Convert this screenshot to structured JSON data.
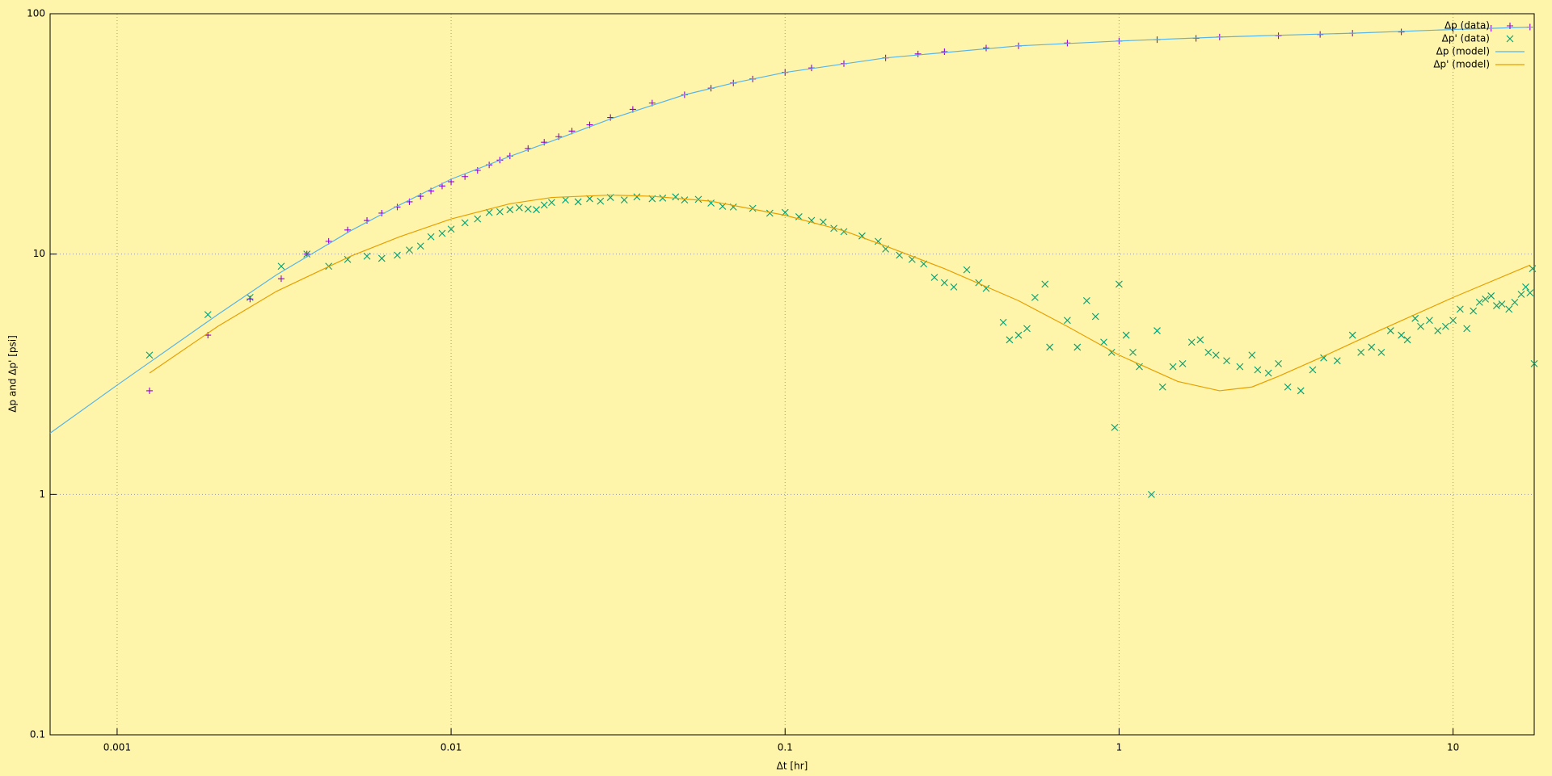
{
  "chart_data": {
    "type": "scatter",
    "xlabel": "Δt [hr]",
    "ylabel": "Δp  and  Δp' [psi]",
    "xlog": true,
    "ylog": true,
    "grid": true,
    "legend": "top-right",
    "background": "#fff5aa",
    "xlim": [
      0.00063,
      17.5
    ],
    "ylim": [
      0.1,
      100
    ],
    "xticks": [
      0.001,
      0.01,
      0.1,
      1,
      10
    ],
    "yticks": [
      0.1,
      1,
      10,
      100
    ],
    "series": [
      {
        "name": "Δp (data)",
        "style": "plus",
        "color": "#9400d3",
        "x": [
          0.00125,
          0.00187,
          0.0025,
          0.0031,
          0.0037,
          0.0043,
          0.0049,
          0.0056,
          0.0062,
          0.0069,
          0.0075,
          0.0081,
          0.0087,
          0.0094,
          0.01,
          0.011,
          0.012,
          0.013,
          0.014,
          0.015,
          0.017,
          0.019,
          0.021,
          0.023,
          0.026,
          0.03,
          0.035,
          0.04,
          0.05,
          0.06,
          0.07,
          0.08,
          0.1,
          0.12,
          0.15,
          0.2,
          0.25,
          0.3,
          0.4,
          0.5,
          0.7,
          1,
          1.3,
          1.7,
          2,
          3,
          4,
          5,
          7,
          10,
          13,
          17
        ],
        "values": [
          2.7,
          4.6,
          6.5,
          7.9,
          10,
          11.3,
          12.6,
          13.8,
          14.8,
          15.7,
          16.5,
          17.4,
          18.3,
          19.2,
          20,
          21,
          22.3,
          23.5,
          24.6,
          25.6,
          27.5,
          29.2,
          30.8,
          32.5,
          34.5,
          37,
          40,
          42.5,
          46,
          49,
          51.5,
          53.5,
          57,
          59.5,
          62,
          65.5,
          68,
          69.5,
          72,
          73.5,
          75.5,
          77,
          78,
          79,
          80,
          81,
          82,
          83,
          84,
          86,
          87,
          88
        ]
      },
      {
        "name": "Δp' (data)",
        "style": "cross",
        "color": "#009e73",
        "x": [
          0.00125,
          0.00187,
          0.0025,
          0.0031,
          0.0037,
          0.0043,
          0.0049,
          0.0056,
          0.0062,
          0.0069,
          0.0075,
          0.0081,
          0.0087,
          0.0094,
          0.01,
          0.011,
          0.012,
          0.013,
          0.014,
          0.015,
          0.016,
          0.017,
          0.018,
          0.019,
          0.02,
          0.022,
          0.024,
          0.026,
          0.028,
          0.03,
          0.033,
          0.036,
          0.04,
          0.043,
          0.047,
          0.05,
          0.055,
          0.06,
          0.065,
          0.07,
          0.08,
          0.09,
          0.1,
          0.11,
          0.12,
          0.13,
          0.14,
          0.15,
          0.17,
          0.19,
          0.2,
          0.22,
          0.24,
          0.26,
          0.28,
          0.3,
          0.32,
          0.35,
          0.38,
          0.4,
          0.45,
          0.47,
          0.5,
          0.53,
          0.56,
          0.6,
          0.62,
          0.7,
          0.75,
          0.8,
          0.85,
          0.9,
          0.95,
          0.97,
          1,
          1.05,
          1.1,
          1.15,
          1.25,
          1.3,
          1.35,
          1.45,
          1.55,
          1.65,
          1.75,
          1.85,
          1.95,
          2.1,
          2.3,
          2.5,
          2.6,
          2.8,
          3,
          3.2,
          3.5,
          3.8,
          4.1,
          4.5,
          5,
          5.3,
          5.7,
          6.1,
          6.5,
          7,
          7.3,
          7.7,
          8,
          8.5,
          9,
          9.5,
          10,
          10.5,
          11,
          11.5,
          12,
          12.5,
          13,
          13.5,
          14,
          14.7,
          15.3,
          16,
          16.5,
          17,
          17.3,
          17.5
        ],
        "values": [
          3.8,
          5.6,
          6.6,
          8.9,
          10,
          8.9,
          9.5,
          9.8,
          9.6,
          9.9,
          10.4,
          10.8,
          11.8,
          12.2,
          12.7,
          13.5,
          14,
          14.9,
          15,
          15.3,
          15.6,
          15.4,
          15.3,
          16,
          16.4,
          16.8,
          16.5,
          17,
          16.6,
          17.2,
          16.8,
          17.3,
          17,
          17.1,
          17.3,
          16.8,
          16.9,
          16.3,
          15.8,
          15.7,
          15.5,
          14.8,
          14.9,
          14.3,
          13.8,
          13.6,
          12.8,
          12.4,
          11.9,
          11.3,
          10.5,
          9.9,
          9.5,
          9.1,
          8,
          7.6,
          7.3,
          8.6,
          7.6,
          7.2,
          5.2,
          4.4,
          4.6,
          4.9,
          6.6,
          7.5,
          4.1,
          5.3,
          4.1,
          6.4,
          5.5,
          4.3,
          3.9,
          1.9,
          7.5,
          4.6,
          3.9,
          3.4,
          1,
          4.8,
          2.8,
          3.4,
          3.5,
          4.3,
          4.4,
          3.9,
          3.8,
          3.6,
          3.4,
          3.8,
          3.3,
          3.2,
          3.5,
          2.8,
          2.7,
          3.3,
          3.7,
          3.6,
          4.6,
          3.9,
          4.1,
          3.9,
          4.8,
          4.6,
          4.4,
          5.4,
          5,
          5.3,
          4.8,
          5,
          5.3,
          5.9,
          4.9,
          5.8,
          6.3,
          6.5,
          6.7,
          6.1,
          6.2,
          5.9,
          6.3,
          6.8,
          7.3,
          6.9,
          8.7,
          3.5
        ]
      },
      {
        "name": "Δp (model)",
        "style": "line",
        "color": "#56b4e9",
        "x": [
          0.00063,
          0.001,
          0.002,
          0.003,
          0.005,
          0.007,
          0.01,
          0.015,
          0.02,
          0.03,
          0.05,
          0.07,
          0.1,
          0.2,
          0.5,
          1,
          2,
          5,
          10,
          17.5
        ],
        "values": [
          1.8,
          2.85,
          5.6,
          8.2,
          12.5,
          16,
          20.5,
          25.5,
          29.5,
          36.5,
          46,
          51.5,
          57,
          65.5,
          73.5,
          77,
          80,
          83,
          86,
          88
        ]
      },
      {
        "name": "Δp' (model)",
        "style": "line",
        "color": "#e69f00",
        "x": [
          0.00125,
          0.002,
          0.003,
          0.005,
          0.007,
          0.01,
          0.015,
          0.02,
          0.03,
          0.04,
          0.06,
          0.1,
          0.15,
          0.2,
          0.3,
          0.5,
          0.7,
          1,
          1.5,
          2,
          2.5,
          3,
          4,
          6,
          10,
          17
        ],
        "values": [
          3.2,
          5,
          7,
          9.8,
          11.8,
          14,
          16.2,
          17.2,
          17.6,
          17.4,
          16.6,
          14.5,
          12.5,
          10.8,
          8.7,
          6.4,
          5,
          3.8,
          2.95,
          2.7,
          2.8,
          3.1,
          3.7,
          4.8,
          6.6,
          9
        ]
      }
    ]
  }
}
